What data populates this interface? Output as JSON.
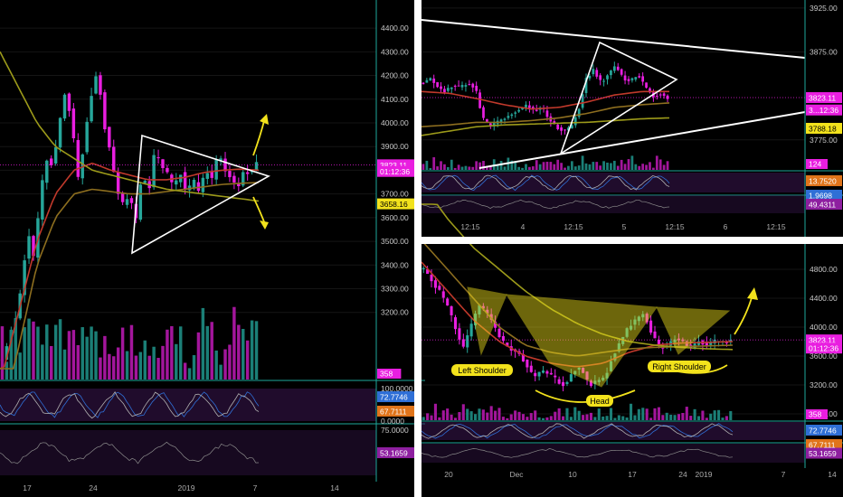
{
  "colors": {
    "bull": "#26a69a",
    "bear": "#e91ee0",
    "volume_bull": "#1b7f77",
    "volume_bear": "#a3169c",
    "ma_short": "#c0392b",
    "ma_mid": "#8d6e1f",
    "ma_long": "#9c9a1a",
    "pattern_line": "#ffffff",
    "arrow": "#f2e21c",
    "price_line": "#e91ee0",
    "panel_border": "#1ea79b",
    "oscillator_bg": "#3a1650",
    "annotation_fill": "#f2e21c"
  },
  "chart_data": [
    {
      "id": "left",
      "type": "line",
      "subtype": "candlestick",
      "x_ticks": [
        "17",
        "24",
        "2019",
        "7",
        "14"
      ],
      "y_ticks": [
        "4400.00",
        "4300.00",
        "4200.00",
        "4100.00",
        "4000.00",
        "3900.00",
        "3800.00",
        "3700.00",
        "3600.00",
        "3500.00",
        "3400.00",
        "3300.00",
        "3200.00"
      ],
      "ylim": [
        3115,
        4450
      ],
      "close_path": [
        3000,
        3080,
        3160,
        3300,
        3550,
        3420,
        3700,
        3850,
        3820,
        4000,
        4150,
        3980,
        3750,
        3950,
        4120,
        4230,
        4000,
        3880,
        3720,
        3650,
        3700,
        3580,
        3800,
        3700,
        3880,
        3820,
        3780,
        3720,
        3800,
        3690,
        3760,
        3700,
        3810,
        3760,
        3880,
        3800,
        3770,
        3720,
        3800,
        3790,
        3823
      ],
      "moving_averages": [
        {
          "key": "ma_short",
          "values": [
            2900,
            3200,
            3500,
            3700,
            3800,
            3830,
            3800,
            3780,
            3760,
            3760,
            3770,
            3790,
            3800,
            3805,
            3800
          ]
        },
        {
          "key": "ma_mid",
          "values": [
            2700,
            3050,
            3400,
            3600,
            3700,
            3720,
            3710,
            3700,
            3700,
            3710,
            3720,
            3730,
            3740,
            3745,
            3748
          ]
        },
        {
          "key": "ma_long",
          "values": [
            4300,
            4150,
            4000,
            3900,
            3850,
            3800,
            3780,
            3760,
            3740,
            3720,
            3710,
            3700,
            3690,
            3680,
            3670
          ]
        }
      ],
      "price_labels": [
        {
          "text": "3823.11",
          "value": 3823.11,
          "color": "#e91ee0"
        },
        {
          "text": "01:12:36",
          "value": 3795,
          "color": "#e91ee0"
        },
        {
          "text": "3658.16",
          "value": 3658.16,
          "color": "#f2e21c"
        }
      ],
      "volume_label": {
        "text": "358",
        "color": "#e91ee0"
      },
      "osc1": {
        "ticks": [
          "100.0000",
          "0.0000"
        ],
        "labels": [
          {
            "text": "72.7746",
            "color": "#2f6fd6"
          },
          {
            "text": "67.7111",
            "color": "#e0741a"
          }
        ]
      },
      "osc2": {
        "ticks": [
          "75.0000"
        ],
        "labels": [
          {
            "text": "53.1659",
            "color": "#8e1fa0"
          }
        ]
      }
    },
    {
      "id": "top-right",
      "type": "line",
      "subtype": "candlestick",
      "x_ticks": [
        "12:15",
        "4",
        "12:15",
        "5",
        "12:15",
        "6",
        "12:15"
      ],
      "y_ticks": [
        "3925.00",
        "3875.00",
        "3775.00"
      ],
      "ylim": [
        3745,
        3930
      ],
      "close_path": [
        3840,
        3845,
        3835,
        3830,
        3838,
        3834,
        3840,
        3835,
        3800,
        3790,
        3795,
        3800,
        3805,
        3810,
        3815,
        3808,
        3812,
        3798,
        3790,
        3785,
        3790,
        3810,
        3845,
        3855,
        3840,
        3850,
        3860,
        3845,
        3842,
        3850,
        3835,
        3825,
        3828,
        3823
      ],
      "moving_averages": [
        {
          "key": "ma_short",
          "values": [
            3830,
            3828,
            3822,
            3815,
            3810,
            3812,
            3818,
            3826,
            3830,
            3830
          ]
        },
        {
          "key": "ma_mid",
          "values": [
            3790,
            3792,
            3795,
            3795,
            3797,
            3800,
            3805,
            3812,
            3815,
            3817
          ]
        },
        {
          "key": "ma_long",
          "values": [
            3780,
            3785,
            3790,
            3792,
            3793,
            3794,
            3795,
            3797,
            3799,
            3800
          ]
        }
      ],
      "price_labels": [
        {
          "text": "3823.11",
          "value": 3823.11,
          "color": "#e91ee0"
        },
        {
          "text": "3...12:36",
          "value": 3809,
          "color": "#e91ee0"
        },
        {
          "text": "3788.18",
          "value": 3788.18,
          "color": "#f2e21c"
        }
      ],
      "volume_label": {
        "text": "124",
        "color": "#e91ee0"
      },
      "osc1": {
        "ticks": [],
        "labels": [
          {
            "text": "13.7520",
            "color": "#e0741a"
          },
          {
            "text": "1.9698",
            "color": "#2f6fd6"
          }
        ]
      },
      "osc2": {
        "ticks": [],
        "labels": [
          {
            "text": "49.4311",
            "color": "#8e1fa0"
          }
        ]
      }
    },
    {
      "id": "bottom-right",
      "type": "line",
      "subtype": "candlestick",
      "x_ticks": [
        "20",
        "Dec",
        "10",
        "17",
        "24",
        "2019",
        "7",
        "14"
      ],
      "y_ticks": [
        "4800.00",
        "4400.00",
        "4000.00",
        "3600.00",
        "3200.00",
        "2800.00"
      ],
      "ylim": [
        2750,
        4950
      ],
      "close_path": [
        4800,
        4650,
        4500,
        4300,
        4000,
        3700,
        4000,
        4300,
        4200,
        4000,
        3800,
        3700,
        3650,
        3500,
        3300,
        3400,
        3350,
        3250,
        3200,
        3400,
        3450,
        3200,
        3250,
        3300,
        3600,
        3800,
        4000,
        4100,
        4200,
        3900,
        3700,
        3750,
        3850,
        3800,
        3700,
        3820,
        3750,
        3800,
        3790,
        3823
      ],
      "moving_averages": [
        {
          "key": "ma_short",
          "values": [
            4900,
            4500,
            4100,
            3800,
            3600,
            3500,
            3450,
            3500,
            3650,
            3750,
            3780,
            3790,
            3800
          ]
        },
        {
          "key": "ma_mid",
          "values": [
            5200,
            4800,
            4400,
            4000,
            3750,
            3650,
            3600,
            3650,
            3700,
            3720,
            3730,
            3740,
            3750
          ]
        },
        {
          "key": "ma_long",
          "values": [
            6000,
            5500,
            5100,
            4800,
            4500,
            4250,
            4050,
            3900,
            3800,
            3750,
            3720,
            3700,
            3690
          ]
        }
      ],
      "price_labels": [
        {
          "text": "3823.11",
          "value": 3823.11,
          "color": "#e91ee0"
        },
        {
          "text": "01:12:36",
          "value": 3710,
          "color": "#e91ee0"
        }
      ],
      "volume_label": {
        "text": "358",
        "color": "#e91ee0"
      },
      "osc1": {
        "ticks": [],
        "labels": [
          {
            "text": "72.7746",
            "color": "#2f6fd6"
          },
          {
            "text": "67.7111",
            "color": "#e0741a"
          }
        ]
      },
      "osc2": {
        "ticks": [],
        "labels": [
          {
            "text": "53.1659",
            "color": "#8e1fa0"
          }
        ]
      },
      "annotations": [
        "Left Shoulder",
        "Head",
        "Right Shoulder"
      ]
    }
  ]
}
